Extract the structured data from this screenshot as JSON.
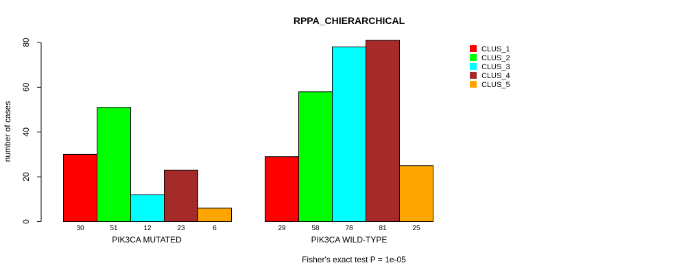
{
  "chart_data": {
    "type": "bar",
    "title": "RPPA_CHIERARCHICAL",
    "ylabel": "number of cases",
    "xlabel": "",
    "ylim": [
      0,
      80
    ],
    "yticks": [
      0,
      20,
      40,
      60,
      80
    ],
    "groups": [
      "PIK3CA MUTATED",
      "PIK3CA WILD-TYPE"
    ],
    "series": [
      {
        "name": "CLUS_1",
        "color": "#ff0000",
        "values": [
          30,
          29
        ]
      },
      {
        "name": "CLUS_2",
        "color": "#00ff00",
        "values": [
          51,
          58
        ]
      },
      {
        "name": "CLUS_3",
        "color": "#00ffff",
        "values": [
          12,
          78
        ]
      },
      {
        "name": "CLUS_4",
        "color": "#a52a2a",
        "values": [
          23,
          81
        ]
      },
      {
        "name": "CLUS_5",
        "color": "#ffa500",
        "values": [
          6,
          25
        ]
      }
    ],
    "count_labels": [
      [
        "30",
        "51",
        "12",
        "23",
        "6"
      ],
      [
        "29",
        "58",
        "78",
        "81",
        "25"
      ]
    ],
    "footnote": "Fisher's exact test P = 1e-05",
    "legend_position": "top-right"
  }
}
